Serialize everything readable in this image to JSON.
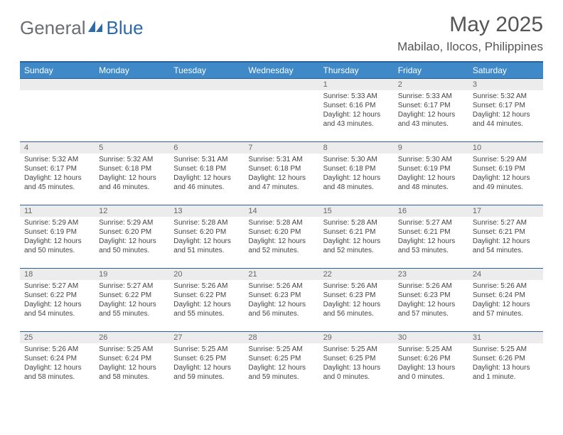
{
  "logo": {
    "text1": "General",
    "text2": "Blue"
  },
  "title": "May 2025",
  "location": "Mabilao, Ilocos, Philippines",
  "colors": {
    "header_bg": "#3f89c8",
    "header_border": "#2d6196",
    "daynum_bg": "#ececec",
    "text": "#444444",
    "logo_gray": "#6a6e72",
    "logo_blue": "#2f6aa8"
  },
  "weekdays": [
    "Sunday",
    "Monday",
    "Tuesday",
    "Wednesday",
    "Thursday",
    "Friday",
    "Saturday"
  ],
  "weeks": [
    [
      {
        "n": "",
        "sunrise": "",
        "sunset": "",
        "daylight1": "",
        "daylight2": ""
      },
      {
        "n": "",
        "sunrise": "",
        "sunset": "",
        "daylight1": "",
        "daylight2": ""
      },
      {
        "n": "",
        "sunrise": "",
        "sunset": "",
        "daylight1": "",
        "daylight2": ""
      },
      {
        "n": "",
        "sunrise": "",
        "sunset": "",
        "daylight1": "",
        "daylight2": ""
      },
      {
        "n": "1",
        "sunrise": "Sunrise: 5:33 AM",
        "sunset": "Sunset: 6:16 PM",
        "daylight1": "Daylight: 12 hours",
        "daylight2": "and 43 minutes."
      },
      {
        "n": "2",
        "sunrise": "Sunrise: 5:33 AM",
        "sunset": "Sunset: 6:17 PM",
        "daylight1": "Daylight: 12 hours",
        "daylight2": "and 43 minutes."
      },
      {
        "n": "3",
        "sunrise": "Sunrise: 5:32 AM",
        "sunset": "Sunset: 6:17 PM",
        "daylight1": "Daylight: 12 hours",
        "daylight2": "and 44 minutes."
      }
    ],
    [
      {
        "n": "4",
        "sunrise": "Sunrise: 5:32 AM",
        "sunset": "Sunset: 6:17 PM",
        "daylight1": "Daylight: 12 hours",
        "daylight2": "and 45 minutes."
      },
      {
        "n": "5",
        "sunrise": "Sunrise: 5:32 AM",
        "sunset": "Sunset: 6:18 PM",
        "daylight1": "Daylight: 12 hours",
        "daylight2": "and 46 minutes."
      },
      {
        "n": "6",
        "sunrise": "Sunrise: 5:31 AM",
        "sunset": "Sunset: 6:18 PM",
        "daylight1": "Daylight: 12 hours",
        "daylight2": "and 46 minutes."
      },
      {
        "n": "7",
        "sunrise": "Sunrise: 5:31 AM",
        "sunset": "Sunset: 6:18 PM",
        "daylight1": "Daylight: 12 hours",
        "daylight2": "and 47 minutes."
      },
      {
        "n": "8",
        "sunrise": "Sunrise: 5:30 AM",
        "sunset": "Sunset: 6:18 PM",
        "daylight1": "Daylight: 12 hours",
        "daylight2": "and 48 minutes."
      },
      {
        "n": "9",
        "sunrise": "Sunrise: 5:30 AM",
        "sunset": "Sunset: 6:19 PM",
        "daylight1": "Daylight: 12 hours",
        "daylight2": "and 48 minutes."
      },
      {
        "n": "10",
        "sunrise": "Sunrise: 5:29 AM",
        "sunset": "Sunset: 6:19 PM",
        "daylight1": "Daylight: 12 hours",
        "daylight2": "and 49 minutes."
      }
    ],
    [
      {
        "n": "11",
        "sunrise": "Sunrise: 5:29 AM",
        "sunset": "Sunset: 6:19 PM",
        "daylight1": "Daylight: 12 hours",
        "daylight2": "and 50 minutes."
      },
      {
        "n": "12",
        "sunrise": "Sunrise: 5:29 AM",
        "sunset": "Sunset: 6:20 PM",
        "daylight1": "Daylight: 12 hours",
        "daylight2": "and 50 minutes."
      },
      {
        "n": "13",
        "sunrise": "Sunrise: 5:28 AM",
        "sunset": "Sunset: 6:20 PM",
        "daylight1": "Daylight: 12 hours",
        "daylight2": "and 51 minutes."
      },
      {
        "n": "14",
        "sunrise": "Sunrise: 5:28 AM",
        "sunset": "Sunset: 6:20 PM",
        "daylight1": "Daylight: 12 hours",
        "daylight2": "and 52 minutes."
      },
      {
        "n": "15",
        "sunrise": "Sunrise: 5:28 AM",
        "sunset": "Sunset: 6:21 PM",
        "daylight1": "Daylight: 12 hours",
        "daylight2": "and 52 minutes."
      },
      {
        "n": "16",
        "sunrise": "Sunrise: 5:27 AM",
        "sunset": "Sunset: 6:21 PM",
        "daylight1": "Daylight: 12 hours",
        "daylight2": "and 53 minutes."
      },
      {
        "n": "17",
        "sunrise": "Sunrise: 5:27 AM",
        "sunset": "Sunset: 6:21 PM",
        "daylight1": "Daylight: 12 hours",
        "daylight2": "and 54 minutes."
      }
    ],
    [
      {
        "n": "18",
        "sunrise": "Sunrise: 5:27 AM",
        "sunset": "Sunset: 6:22 PM",
        "daylight1": "Daylight: 12 hours",
        "daylight2": "and 54 minutes."
      },
      {
        "n": "19",
        "sunrise": "Sunrise: 5:27 AM",
        "sunset": "Sunset: 6:22 PM",
        "daylight1": "Daylight: 12 hours",
        "daylight2": "and 55 minutes."
      },
      {
        "n": "20",
        "sunrise": "Sunrise: 5:26 AM",
        "sunset": "Sunset: 6:22 PM",
        "daylight1": "Daylight: 12 hours",
        "daylight2": "and 55 minutes."
      },
      {
        "n": "21",
        "sunrise": "Sunrise: 5:26 AM",
        "sunset": "Sunset: 6:23 PM",
        "daylight1": "Daylight: 12 hours",
        "daylight2": "and 56 minutes."
      },
      {
        "n": "22",
        "sunrise": "Sunrise: 5:26 AM",
        "sunset": "Sunset: 6:23 PM",
        "daylight1": "Daylight: 12 hours",
        "daylight2": "and 56 minutes."
      },
      {
        "n": "23",
        "sunrise": "Sunrise: 5:26 AM",
        "sunset": "Sunset: 6:23 PM",
        "daylight1": "Daylight: 12 hours",
        "daylight2": "and 57 minutes."
      },
      {
        "n": "24",
        "sunrise": "Sunrise: 5:26 AM",
        "sunset": "Sunset: 6:24 PM",
        "daylight1": "Daylight: 12 hours",
        "daylight2": "and 57 minutes."
      }
    ],
    [
      {
        "n": "25",
        "sunrise": "Sunrise: 5:26 AM",
        "sunset": "Sunset: 6:24 PM",
        "daylight1": "Daylight: 12 hours",
        "daylight2": "and 58 minutes."
      },
      {
        "n": "26",
        "sunrise": "Sunrise: 5:25 AM",
        "sunset": "Sunset: 6:24 PM",
        "daylight1": "Daylight: 12 hours",
        "daylight2": "and 58 minutes."
      },
      {
        "n": "27",
        "sunrise": "Sunrise: 5:25 AM",
        "sunset": "Sunset: 6:25 PM",
        "daylight1": "Daylight: 12 hours",
        "daylight2": "and 59 minutes."
      },
      {
        "n": "28",
        "sunrise": "Sunrise: 5:25 AM",
        "sunset": "Sunset: 6:25 PM",
        "daylight1": "Daylight: 12 hours",
        "daylight2": "and 59 minutes."
      },
      {
        "n": "29",
        "sunrise": "Sunrise: 5:25 AM",
        "sunset": "Sunset: 6:25 PM",
        "daylight1": "Daylight: 13 hours",
        "daylight2": "and 0 minutes."
      },
      {
        "n": "30",
        "sunrise": "Sunrise: 5:25 AM",
        "sunset": "Sunset: 6:26 PM",
        "daylight1": "Daylight: 13 hours",
        "daylight2": "and 0 minutes."
      },
      {
        "n": "31",
        "sunrise": "Sunrise: 5:25 AM",
        "sunset": "Sunset: 6:26 PM",
        "daylight1": "Daylight: 13 hours",
        "daylight2": "and 1 minute."
      }
    ]
  ]
}
